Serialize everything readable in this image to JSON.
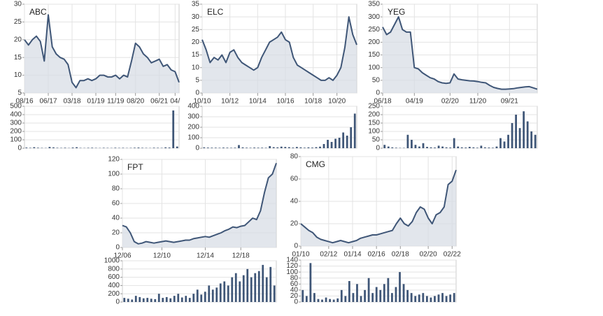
{
  "chart_data": [
    {
      "type": "line",
      "title": "ABC",
      "categories": [
        "08/16",
        null,
        null,
        null,
        null,
        null,
        "06/17",
        null,
        null,
        null,
        null,
        null,
        "03/18",
        null,
        null,
        null,
        null,
        null,
        "01/19",
        null,
        null,
        null,
        null,
        "11/19",
        null,
        null,
        null,
        null,
        "08/20",
        null,
        null,
        null,
        null,
        null,
        "06/21",
        null,
        null,
        null,
        "04/",
        null
      ],
      "values": [
        20,
        18.5,
        20,
        21,
        19.5,
        14,
        27,
        18,
        16,
        15,
        14.5,
        13,
        8,
        6.5,
        8.5,
        8.5,
        9,
        8.5,
        9,
        10,
        10,
        9.5,
        9.5,
        10,
        9,
        10,
        9.5,
        14,
        19,
        18,
        16,
        15,
        13.5,
        14,
        14.5,
        12.5,
        13,
        11.5,
        11,
        8
      ],
      "ylim": [
        5,
        30
      ],
      "yticks": [
        5,
        10,
        15,
        20,
        25,
        30
      ],
      "color": "#3f5677",
      "fill": "#d5dbe4",
      "grid": true
    },
    {
      "type": "bar",
      "values": [
        8,
        5,
        12,
        6,
        4,
        3,
        15,
        10,
        5,
        4,
        6,
        3,
        8,
        12,
        4,
        3,
        5,
        6,
        4,
        3,
        5,
        4,
        3,
        6,
        4,
        5,
        3,
        4,
        6,
        8,
        5,
        4,
        3,
        6,
        5,
        4,
        10,
        8,
        450,
        20
      ],
      "ylim": [
        0,
        500
      ],
      "yticks": [
        0,
        100,
        200,
        300,
        400,
        500
      ],
      "color": "#3f5677",
      "grid": true
    },
    {
      "type": "line",
      "title": "ELC",
      "categories": [
        "10/10",
        null,
        null,
        null,
        null,
        null,
        null,
        "10/12",
        null,
        null,
        null,
        null,
        null,
        null,
        "10/14",
        null,
        null,
        null,
        null,
        null,
        null,
        "10/16",
        null,
        null,
        null,
        null,
        null,
        null,
        "10/18",
        null,
        null,
        null,
        null,
        null,
        "10/20",
        null,
        null,
        null,
        null,
        null
      ],
      "values": [
        21,
        17,
        12,
        14,
        13,
        15,
        12,
        16,
        17,
        14,
        12,
        11,
        10,
        9,
        10,
        14,
        17,
        20,
        21,
        22,
        24,
        21,
        20,
        14,
        11,
        10,
        9,
        8,
        7,
        6,
        5,
        5,
        6,
        5,
        7,
        10,
        18,
        30,
        23,
        19
      ],
      "ylim": [
        0,
        35
      ],
      "yticks": [
        0,
        5,
        10,
        15,
        20,
        25,
        30,
        35
      ],
      "color": "#3f5677",
      "fill": "#d5dbe4",
      "grid": true
    },
    {
      "type": "bar",
      "values": [
        8,
        6,
        5,
        5,
        4,
        6,
        5,
        4,
        5,
        30,
        8,
        5,
        4,
        6,
        5,
        5,
        4,
        20,
        10,
        8,
        15,
        12,
        10,
        6,
        12,
        8,
        5,
        8,
        6,
        10,
        15,
        40,
        80,
        60,
        90,
        100,
        150,
        120,
        200,
        330
      ],
      "ylim": [
        0,
        400
      ],
      "yticks": [
        0,
        100,
        200,
        300,
        400
      ],
      "color": "#3f5677",
      "grid": true
    },
    {
      "type": "line",
      "title": "YEG",
      "categories": [
        "06/18",
        null,
        null,
        null,
        null,
        null,
        null,
        null,
        "04/19",
        null,
        null,
        null,
        null,
        null,
        null,
        null,
        null,
        "02/20",
        null,
        null,
        null,
        null,
        null,
        null,
        "11/20",
        null,
        null,
        null,
        null,
        null,
        null,
        null,
        "09/21",
        null,
        null,
        null,
        null,
        null,
        null,
        null
      ],
      "values": [
        260,
        230,
        240,
        270,
        300,
        250,
        240,
        240,
        100,
        95,
        80,
        70,
        60,
        55,
        45,
        40,
        38,
        40,
        75,
        55,
        52,
        50,
        48,
        47,
        45,
        42,
        40,
        30,
        22,
        18,
        15,
        15,
        16,
        17,
        20,
        22,
        24,
        25,
        20,
        15
      ],
      "ylim": [
        0,
        350
      ],
      "yticks": [
        0,
        50,
        100,
        150,
        200,
        250,
        300,
        350
      ],
      "color": "#3f5677",
      "fill": "#d5dbe4",
      "grid": true
    },
    {
      "type": "bar",
      "values": [
        20,
        10,
        5,
        3,
        2,
        2,
        80,
        50,
        20,
        10,
        30,
        8,
        5,
        4,
        15,
        10,
        5,
        4,
        60,
        10,
        5,
        4,
        8,
        5,
        3,
        15,
        5,
        4,
        3,
        10,
        60,
        40,
        80,
        150,
        200,
        120,
        220,
        160,
        100,
        80
      ],
      "ylim": [
        0,
        250
      ],
      "yticks": [
        0,
        50,
        100,
        150,
        200,
        250
      ],
      "color": "#3f5677",
      "grid": true
    },
    {
      "type": "line",
      "title": "FPT",
      "categories": [
        "12/06",
        null,
        null,
        null,
        null,
        null,
        null,
        null,
        null,
        null,
        "12/10",
        null,
        null,
        null,
        null,
        null,
        null,
        null,
        null,
        null,
        null,
        "12/14",
        null,
        null,
        null,
        null,
        null,
        null,
        null,
        null,
        "12/18",
        null,
        null,
        null,
        null,
        null,
        null,
        null,
        null,
        null
      ],
      "values": [
        30,
        28,
        20,
        8,
        5,
        6,
        8,
        7,
        6,
        7,
        8,
        9,
        8,
        7,
        8,
        9,
        10,
        10,
        12,
        13,
        14,
        15,
        14,
        16,
        18,
        20,
        23,
        25,
        28,
        27,
        29,
        30,
        35,
        40,
        38,
        50,
        75,
        95,
        100,
        115
      ],
      "ylim": [
        0,
        120
      ],
      "yticks": [
        0,
        20,
        40,
        60,
        80,
        100,
        120
      ],
      "color": "#3f5677",
      "fill": "#d5dbe4",
      "grid": true
    },
    {
      "type": "bar",
      "values": [
        100,
        80,
        60,
        150,
        120,
        90,
        100,
        80,
        70,
        200,
        100,
        120,
        90,
        150,
        200,
        110,
        150,
        100,
        200,
        300,
        180,
        250,
        400,
        300,
        350,
        450,
        500,
        400,
        600,
        700,
        500,
        650,
        800,
        600,
        700,
        750,
        900,
        600,
        850,
        400
      ],
      "ylim": [
        0,
        1000
      ],
      "yticks": [
        0,
        200,
        400,
        600,
        800,
        1000
      ],
      "color": "#3f5677",
      "grid": true
    },
    {
      "type": "line",
      "title": "CMG",
      "categories": [
        "01/10",
        null,
        null,
        null,
        null,
        null,
        null,
        "02/12",
        null,
        null,
        null,
        null,
        null,
        "01/14",
        null,
        null,
        null,
        null,
        null,
        "02/16",
        null,
        null,
        null,
        null,
        null,
        "02/18",
        null,
        null,
        null,
        null,
        null,
        null,
        "02/20",
        null,
        null,
        null,
        null,
        null,
        "02/22",
        null
      ],
      "values": [
        20,
        17,
        14,
        12,
        8,
        6,
        5,
        4,
        3,
        4,
        5,
        4,
        3,
        4,
        5,
        7,
        8,
        9,
        10,
        10,
        11,
        12,
        13,
        14,
        20,
        25,
        20,
        18,
        22,
        30,
        35,
        33,
        25,
        20,
        28,
        30,
        35,
        55,
        58,
        68
      ],
      "ylim": [
        0,
        80
      ],
      "yticks": [
        0,
        20,
        40,
        60,
        80
      ],
      "color": "#3f5677",
      "fill": "#d5dbe4",
      "grid": true
    },
    {
      "type": "bar",
      "values": [
        40,
        20,
        130,
        30,
        10,
        8,
        15,
        10,
        8,
        12,
        40,
        20,
        70,
        30,
        60,
        20,
        40,
        80,
        30,
        50,
        40,
        60,
        80,
        30,
        50,
        100,
        60,
        40,
        30,
        20,
        25,
        30,
        20,
        15,
        20,
        25,
        30,
        20,
        25,
        30
      ],
      "ylim": [
        0,
        140
      ],
      "yticks": [
        0,
        20,
        40,
        60,
        80,
        100,
        120,
        140
      ],
      "color": "#3f5677",
      "grid": true
    }
  ]
}
